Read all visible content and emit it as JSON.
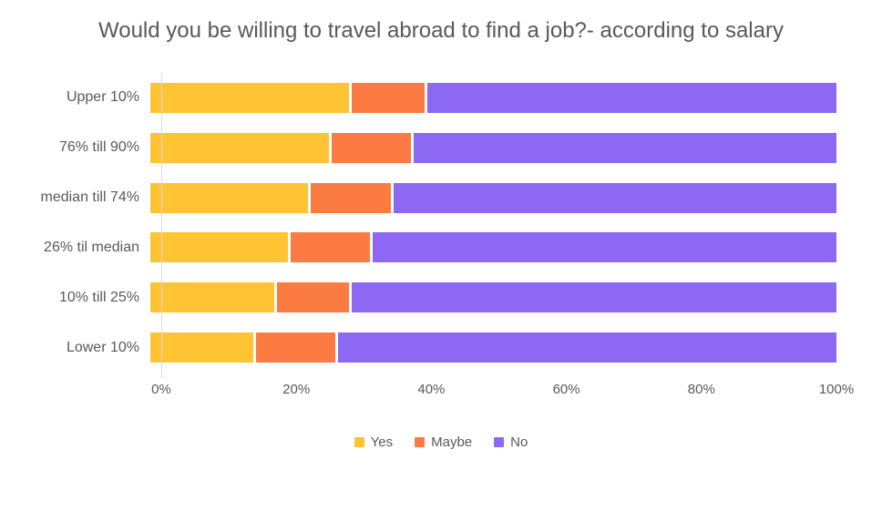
{
  "title": "Would you be willing to travel abroad to find a job?- according to salary",
  "chart_data": {
    "type": "bar",
    "orientation": "horizontal",
    "stacked": true,
    "title": "Would you be willing to travel abroad to find a job?- according to salary",
    "categories": [
      "Upper 10%",
      "76% till 90%",
      "median till 74%",
      "26% til median",
      "10% till 25%",
      "Lower 10%"
    ],
    "series": [
      {
        "name": "Yes",
        "color": "#FFC433",
        "values": [
          29,
          26,
          23,
          20,
          18,
          15
        ]
      },
      {
        "name": "Maybe",
        "color": "#FB7B42",
        "values": [
          11,
          12,
          12,
          12,
          11,
          12
        ]
      },
      {
        "name": "No",
        "color": "#8C68F3",
        "values": [
          60,
          62,
          65,
          68,
          71,
          73
        ]
      }
    ],
    "x_ticks": [
      "0%",
      "20%",
      "40%",
      "60%",
      "80%",
      "100%"
    ],
    "xlim": [
      0,
      100
    ],
    "xlabel": "",
    "ylabel": "",
    "grid": false,
    "legend_position": "bottom"
  },
  "colors": {
    "text": "#595959",
    "axis_line": "#D9D9D9",
    "background": "#FFFFFF"
  }
}
